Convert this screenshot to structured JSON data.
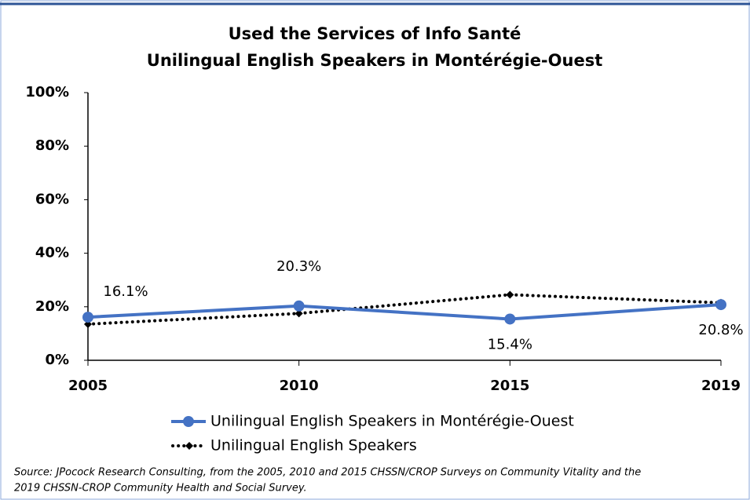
{
  "chart_data": {
    "type": "line",
    "title": "Used the Services of Info Santé",
    "subtitle": "Unilingual English Speakers in Montérégie-Ouest",
    "categories": [
      "2005",
      "2010",
      "2015",
      "2019"
    ],
    "series": [
      {
        "name": "Unilingual English Speakers in Montérégie-Ouest",
        "color": "#4472c4",
        "values": [
          16.1,
          20.3,
          15.4,
          20.8
        ],
        "value_labels": [
          "16.1%",
          "20.3%",
          "15.4%",
          "20.8%"
        ]
      },
      {
        "name": "Unilingual English Speakers",
        "color": "#000000",
        "values": [
          13.5,
          17.5,
          24.5,
          21.5
        ]
      }
    ],
    "ylim": [
      0,
      100
    ],
    "yticks": [
      {
        "value": 0,
        "label": "0%"
      },
      {
        "value": 20,
        "label": "20%"
      },
      {
        "value": 40,
        "label": "40%"
      },
      {
        "value": 60,
        "label": "60%"
      },
      {
        "value": 80,
        "label": "80%"
      },
      {
        "value": 100,
        "label": "100%"
      }
    ],
    "grid": false,
    "source": [
      "Source: JPocock Research Consulting, from the 2005, 2010  and 2015  CHSSN/CROP Surveys on Community Vitality and the",
      "2019  CHSSN-CROP Community Health and Social Survey."
    ]
  }
}
